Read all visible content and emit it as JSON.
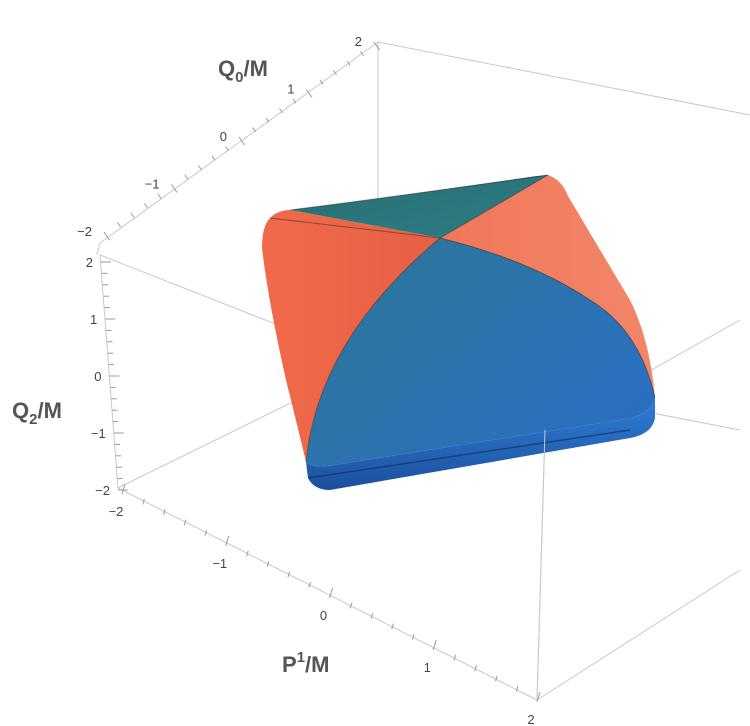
{
  "chart_data": {
    "type": "surface3d",
    "title": "",
    "axes": {
      "x": {
        "label": "P",
        "label_sup": "1",
        "label_unit": "/M",
        "range": [
          -2,
          2
        ],
        "ticks": [
          "−2",
          "−1",
          "0",
          "1",
          "2"
        ]
      },
      "y": {
        "label": "Q",
        "label_sub": "0",
        "label_unit": "/M",
        "range": [
          -2,
          2
        ],
        "ticks": [
          "−2",
          "−1",
          "0",
          "1",
          "2"
        ]
      },
      "z": {
        "label": "Q",
        "label_sub": "2",
        "label_unit": "/M",
        "range": [
          -2,
          2
        ],
        "ticks": [
          "−2",
          "−1",
          "0",
          "1",
          "2"
        ]
      }
    },
    "surface": {
      "shape": "rounded square slab",
      "extent": {
        "x": [
          -1,
          1
        ],
        "y": [
          -1,
          1
        ],
        "z": [
          -0.3,
          0.3
        ]
      },
      "colors": {
        "orange": "#ef6a4b",
        "teal": "#2a7a84",
        "blue": "#2b6fb8",
        "dark_blue": "#1a4f9a"
      }
    },
    "box": true,
    "grid": false
  }
}
